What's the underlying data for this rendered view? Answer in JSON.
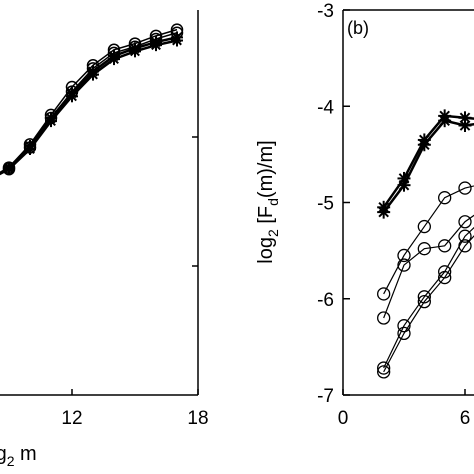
{
  "chart_data": [
    {
      "panel": "a",
      "type": "line",
      "xlabel": "log",
      "xlabel_sub": "2",
      "xlabel_tail": " m",
      "xlim": [
        8,
        18
      ],
      "x_ticks": [
        12,
        18
      ],
      "series": [
        {
          "marker": "circle",
          "x": [
            8,
            9,
            10,
            11,
            12,
            13,
            14,
            15,
            16,
            17
          ],
          "y": [
            0.0,
            0.08,
            0.23,
            0.42,
            0.6,
            0.74,
            0.84,
            0.88,
            0.93,
            0.97
          ]
        },
        {
          "marker": "circle",
          "x": [
            8,
            9,
            10,
            11,
            12,
            13,
            14,
            15,
            16,
            17
          ],
          "y": [
            0.0,
            0.07,
            0.21,
            0.4,
            0.57,
            0.72,
            0.82,
            0.86,
            0.91,
            0.95
          ]
        },
        {
          "marker": "star",
          "x": [
            8,
            9,
            10,
            11,
            12,
            13,
            14,
            15,
            16,
            17
          ],
          "y": [
            0.0,
            0.08,
            0.22,
            0.4,
            0.56,
            0.7,
            0.8,
            0.85,
            0.89,
            0.92
          ]
        },
        {
          "marker": "star",
          "x": [
            8,
            9,
            10,
            11,
            12,
            13,
            14,
            15,
            16,
            17
          ],
          "y": [
            0.0,
            0.07,
            0.2,
            0.38,
            0.54,
            0.68,
            0.78,
            0.83,
            0.87,
            0.9
          ]
        }
      ]
    },
    {
      "panel": "b",
      "panel_label": "(b)",
      "type": "line",
      "ylabel_pre": "log",
      "ylabel_sub": "2",
      "ylabel_mid": " [F",
      "ylabel_sub2": "d",
      "ylabel_post": "(m)/m]",
      "ylim": [
        -7,
        -3
      ],
      "y_ticks": [
        -3,
        -4,
        -5,
        -6,
        -7
      ],
      "xlim": [
        0,
        8
      ],
      "x_ticks": [
        0,
        6
      ],
      "series": [
        {
          "marker": "star",
          "x": [
            2,
            3,
            4,
            5,
            6,
            7
          ],
          "y": [
            -5.05,
            -4.75,
            -4.35,
            -4.1,
            -4.12,
            -4.14
          ]
        },
        {
          "marker": "star",
          "x": [
            2,
            3,
            4,
            5,
            6,
            7
          ],
          "y": [
            -5.1,
            -4.82,
            -4.4,
            -4.15,
            -4.2,
            -4.17
          ]
        },
        {
          "marker": "circle",
          "x": [
            2,
            3,
            4,
            5,
            6,
            7
          ],
          "y": [
            -5.95,
            -5.55,
            -5.25,
            -4.95,
            -4.85,
            -4.8
          ]
        },
        {
          "marker": "circle",
          "x": [
            2,
            3,
            4,
            5,
            6,
            7
          ],
          "y": [
            -6.2,
            -5.65,
            -5.48,
            -5.45,
            -5.2,
            -5.05
          ]
        },
        {
          "marker": "circle",
          "x": [
            2,
            3,
            4,
            5,
            6,
            7
          ],
          "y": [
            -6.72,
            -6.28,
            -5.98,
            -5.72,
            -5.35,
            -5.15
          ]
        },
        {
          "marker": "circle",
          "x": [
            2,
            3,
            4,
            5,
            6,
            7
          ],
          "y": [
            -6.76,
            -6.36,
            -6.03,
            -5.78,
            -5.45,
            -5.22
          ]
        }
      ]
    }
  ]
}
